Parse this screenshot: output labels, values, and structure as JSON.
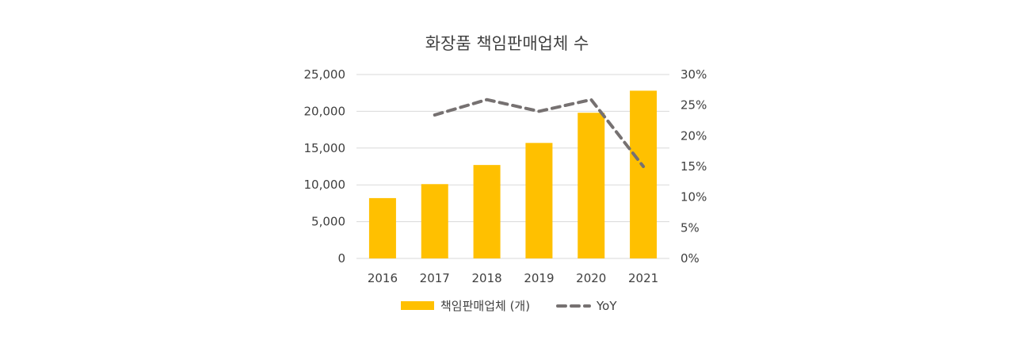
{
  "chart_data": {
    "type": "bar",
    "title": "화장품 책임판매업체 수",
    "categories": [
      "2016",
      "2017",
      "2018",
      "2019",
      "2020",
      "2021"
    ],
    "series": [
      {
        "name": "책임판매업체 (개)",
        "type": "bar",
        "axis": "left",
        "color": "#FFC000",
        "values": [
          8200,
          10100,
          12700,
          15700,
          19800,
          22800
        ]
      },
      {
        "name": "YoY",
        "type": "line",
        "axis": "right",
        "color": "#767171",
        "line_style": "dashed",
        "values": [
          null,
          0.234,
          0.259,
          0.24,
          0.259,
          0.15
        ]
      }
    ],
    "y_left": {
      "min": 0,
      "max": 25000,
      "ticks": [
        0,
        5000,
        10000,
        15000,
        20000,
        25000
      ],
      "tick_labels": [
        "0",
        "5,000",
        "10,000",
        "15,000",
        "20,000",
        "25,000"
      ]
    },
    "y_right": {
      "min": 0,
      "max": 0.3,
      "ticks": [
        0,
        0.05,
        0.1,
        0.15,
        0.2,
        0.25,
        0.3
      ],
      "tick_labels": [
        "0%",
        "5%",
        "10%",
        "15%",
        "20%",
        "25%",
        "30%"
      ]
    },
    "grid": true,
    "legend_position": "bottom"
  }
}
